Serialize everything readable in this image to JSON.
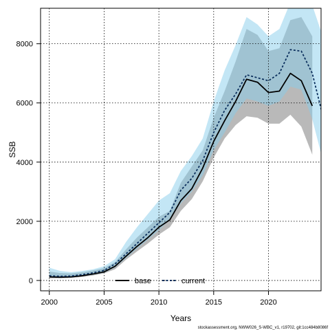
{
  "chart_data": {
    "type": "line",
    "title": "",
    "xlabel": "Years",
    "ylabel": "SSB",
    "xlim": [
      1999.2,
      2024.8
    ],
    "ylim": [
      -350,
      9200
    ],
    "x_ticks": [
      2000,
      2005,
      2010,
      2015,
      2020
    ],
    "y_ticks": [
      0,
      2000,
      4000,
      6000,
      8000
    ],
    "grid": true,
    "legend_position": "bottom-center",
    "series": [
      {
        "name": "base",
        "color": "#000000",
        "line_style": "solid",
        "band_color": "#7f7f7f",
        "x": [
          2000,
          2001,
          2002,
          2003,
          2004,
          2005,
          2006,
          2007,
          2008,
          2009,
          2010,
          2011,
          2012,
          2013,
          2014,
          2015,
          2016,
          2017,
          2018,
          2019,
          2020,
          2021,
          2022,
          2023,
          2024
        ],
        "values": [
          120,
          110,
          120,
          160,
          220,
          290,
          480,
          820,
          1150,
          1450,
          1800,
          2050,
          2700,
          3100,
          3800,
          4700,
          5400,
          6050,
          6800,
          6700,
          6350,
          6400,
          7000,
          6750,
          5900
        ],
        "lower": [
          70,
          75,
          85,
          120,
          170,
          240,
          380,
          700,
          980,
          1250,
          1550,
          1800,
          2350,
          2750,
          3350,
          4150,
          4800,
          5250,
          5550,
          5500,
          5300,
          5300,
          5600,
          5200,
          4250
        ],
        "upper": [
          300,
          250,
          240,
          280,
          340,
          420,
          620,
          1050,
          1450,
          1800,
          2150,
          2350,
          3300,
          3850,
          4400,
          5500,
          6400,
          7400,
          8500,
          8300,
          7750,
          7850,
          8800,
          8900,
          8250
        ]
      },
      {
        "name": "current",
        "color": "#0a2e5c",
        "line_style": "dashed",
        "band_color": "#87ceeb",
        "x": [
          2000,
          2001,
          2002,
          2003,
          2004,
          2005,
          2006,
          2007,
          2008,
          2009,
          2010,
          2011,
          2012,
          2013,
          2014,
          2015,
          2016,
          2017,
          2018,
          2019,
          2020,
          2021,
          2022,
          2023,
          2024,
          2025
        ],
        "values": [
          160,
          140,
          150,
          200,
          260,
          340,
          560,
          900,
          1250,
          1600,
          1950,
          2300,
          3050,
          3450,
          4050,
          5000,
          5750,
          6300,
          6950,
          6850,
          6750,
          7000,
          7800,
          7750,
          7000,
          5500
        ],
        "lower": [
          100,
          85,
          100,
          140,
          190,
          260,
          440,
          760,
          1080,
          1380,
          1700,
          2050,
          2600,
          3000,
          3550,
          4400,
          5000,
          5650,
          6150,
          6050,
          5900,
          6050,
          6550,
          6450,
          5450,
          4000
        ],
        "upper": [
          430,
          320,
          280,
          320,
          380,
          480,
          720,
          1300,
          1800,
          2250,
          2700,
          2950,
          3700,
          4200,
          4800,
          6050,
          7100,
          7950,
          8900,
          8650,
          8250,
          8500,
          9400,
          9700,
          9300,
          8200
        ]
      }
    ]
  },
  "footnote": "stockassessment.org, NWW026_S-WBC_v1, r19702, git:1cc484b8086f"
}
